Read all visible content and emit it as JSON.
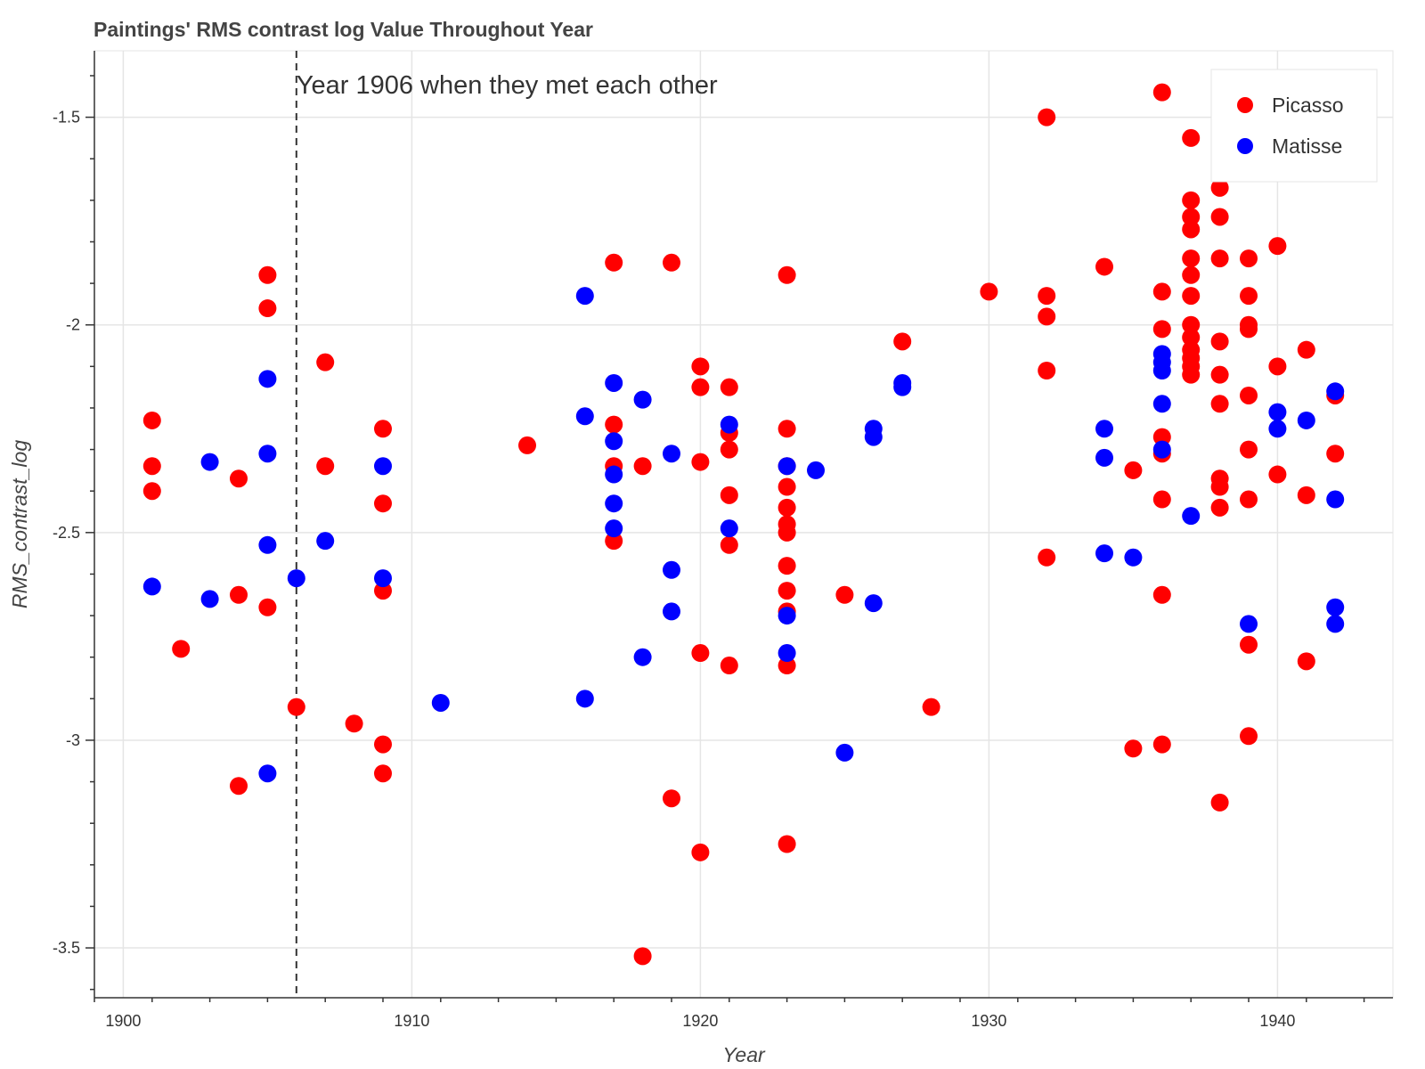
{
  "chart_data": {
    "type": "scatter",
    "title": "Paintings' RMS contrast log Value Throughout Year",
    "xlabel": "Year",
    "ylabel": "RMS_contrast_log",
    "xlim": [
      1899,
      1944
    ],
    "ylim": [
      -3.62,
      -1.34
    ],
    "x_ticks": [
      1900,
      1910,
      1920,
      1930,
      1940
    ],
    "y_ticks": [
      -1.5,
      -2,
      -2.5,
      -3,
      -3.5
    ],
    "grid": true,
    "legend_position": "top-right",
    "annotation": {
      "x": 1906,
      "style": "dashed",
      "text": "Year 1906 when they met each other"
    },
    "series": [
      {
        "name": "Picasso",
        "color": "#ff0000",
        "points": [
          [
            1901,
            -2.23
          ],
          [
            1901,
            -2.34
          ],
          [
            1901,
            -2.4
          ],
          [
            1902,
            -2.78
          ],
          [
            1904,
            -2.37
          ],
          [
            1904,
            -2.65
          ],
          [
            1904,
            -3.11
          ],
          [
            1905,
            -1.88
          ],
          [
            1905,
            -1.96
          ],
          [
            1905,
            -2.68
          ],
          [
            1906,
            -2.92
          ],
          [
            1907,
            -2.09
          ],
          [
            1907,
            -2.34
          ],
          [
            1908,
            -2.96
          ],
          [
            1909,
            -2.25
          ],
          [
            1909,
            -2.43
          ],
          [
            1909,
            -2.64
          ],
          [
            1909,
            -3.01
          ],
          [
            1909,
            -3.08
          ],
          [
            1914,
            -2.29
          ],
          [
            1917,
            -1.85
          ],
          [
            1917,
            -2.24
          ],
          [
            1917,
            -2.34
          ],
          [
            1917,
            -2.52
          ],
          [
            1918,
            -2.34
          ],
          [
            1918,
            -3.52
          ],
          [
            1919,
            -1.85
          ],
          [
            1919,
            -3.14
          ],
          [
            1920,
            -2.1
          ],
          [
            1920,
            -2.15
          ],
          [
            1920,
            -2.33
          ],
          [
            1920,
            -2.79
          ],
          [
            1920,
            -3.27
          ],
          [
            1921,
            -2.15
          ],
          [
            1921,
            -2.26
          ],
          [
            1921,
            -2.3
          ],
          [
            1921,
            -2.41
          ],
          [
            1921,
            -2.53
          ],
          [
            1921,
            -2.82
          ],
          [
            1923,
            -1.88
          ],
          [
            1923,
            -2.25
          ],
          [
            1923,
            -2.34
          ],
          [
            1923,
            -2.39
          ],
          [
            1923,
            -2.44
          ],
          [
            1923,
            -2.48
          ],
          [
            1923,
            -2.5
          ],
          [
            1923,
            -2.58
          ],
          [
            1923,
            -2.64
          ],
          [
            1923,
            -2.69
          ],
          [
            1923,
            -2.82
          ],
          [
            1923,
            -3.25
          ],
          [
            1925,
            -2.65
          ],
          [
            1927,
            -2.04
          ],
          [
            1928,
            -2.92
          ],
          [
            1930,
            -1.92
          ],
          [
            1932,
            -1.5
          ],
          [
            1932,
            -1.93
          ],
          [
            1932,
            -1.98
          ],
          [
            1932,
            -2.11
          ],
          [
            1932,
            -2.56
          ],
          [
            1934,
            -1.86
          ],
          [
            1935,
            -2.35
          ],
          [
            1935,
            -3.02
          ],
          [
            1936,
            -1.44
          ],
          [
            1936,
            -1.92
          ],
          [
            1936,
            -2.01
          ],
          [
            1936,
            -2.27
          ],
          [
            1936,
            -2.31
          ],
          [
            1936,
            -2.42
          ],
          [
            1936,
            -2.65
          ],
          [
            1936,
            -3.01
          ],
          [
            1937,
            -1.55
          ],
          [
            1937,
            -1.7
          ],
          [
            1937,
            -1.74
          ],
          [
            1937,
            -1.77
          ],
          [
            1937,
            -1.84
          ],
          [
            1937,
            -1.88
          ],
          [
            1937,
            -1.93
          ],
          [
            1937,
            -2.0
          ],
          [
            1937,
            -2.03
          ],
          [
            1937,
            -2.06
          ],
          [
            1937,
            -2.08
          ],
          [
            1937,
            -2.1
          ],
          [
            1937,
            -2.12
          ],
          [
            1938,
            -1.47
          ],
          [
            1938,
            -1.67
          ],
          [
            1938,
            -1.74
          ],
          [
            1938,
            -1.84
          ],
          [
            1938,
            -2.04
          ],
          [
            1938,
            -2.12
          ],
          [
            1938,
            -2.19
          ],
          [
            1938,
            -2.37
          ],
          [
            1938,
            -2.39
          ],
          [
            1938,
            -2.44
          ],
          [
            1938,
            -3.15
          ],
          [
            1939,
            -1.84
          ],
          [
            1939,
            -1.93
          ],
          [
            1939,
            -2.0
          ],
          [
            1939,
            -2.01
          ],
          [
            1939,
            -2.17
          ],
          [
            1939,
            -2.3
          ],
          [
            1939,
            -2.42
          ],
          [
            1939,
            -2.77
          ],
          [
            1939,
            -2.99
          ],
          [
            1940,
            -1.81
          ],
          [
            1940,
            -2.1
          ],
          [
            1940,
            -2.36
          ],
          [
            1941,
            -1.52
          ],
          [
            1941,
            -2.06
          ],
          [
            1941,
            -2.41
          ],
          [
            1941,
            -2.81
          ],
          [
            1942,
            -2.17
          ],
          [
            1942,
            -2.31
          ]
        ]
      },
      {
        "name": "Matisse",
        "color": "#0000ff",
        "points": [
          [
            1901,
            -2.63
          ],
          [
            1903,
            -2.33
          ],
          [
            1903,
            -2.66
          ],
          [
            1905,
            -2.13
          ],
          [
            1905,
            -2.31
          ],
          [
            1905,
            -2.53
          ],
          [
            1905,
            -3.08
          ],
          [
            1906,
            -2.61
          ],
          [
            1907,
            -2.52
          ],
          [
            1909,
            -2.34
          ],
          [
            1909,
            -2.61
          ],
          [
            1911,
            -2.91
          ],
          [
            1916,
            -1.93
          ],
          [
            1916,
            -2.22
          ],
          [
            1916,
            -2.9
          ],
          [
            1917,
            -2.14
          ],
          [
            1917,
            -2.28
          ],
          [
            1917,
            -2.36
          ],
          [
            1917,
            -2.43
          ],
          [
            1917,
            -2.49
          ],
          [
            1918,
            -2.18
          ],
          [
            1918,
            -2.8
          ],
          [
            1919,
            -2.31
          ],
          [
            1919,
            -2.59
          ],
          [
            1919,
            -2.69
          ],
          [
            1921,
            -2.24
          ],
          [
            1921,
            -2.49
          ],
          [
            1923,
            -2.34
          ],
          [
            1923,
            -2.7
          ],
          [
            1923,
            -2.79
          ],
          [
            1924,
            -2.35
          ],
          [
            1925,
            -3.03
          ],
          [
            1926,
            -2.25
          ],
          [
            1926,
            -2.27
          ],
          [
            1926,
            -2.67
          ],
          [
            1927,
            -2.14
          ],
          [
            1927,
            -2.15
          ],
          [
            1934,
            -2.25
          ],
          [
            1934,
            -2.32
          ],
          [
            1934,
            -2.55
          ],
          [
            1935,
            -2.56
          ],
          [
            1936,
            -2.07
          ],
          [
            1936,
            -2.09
          ],
          [
            1936,
            -2.11
          ],
          [
            1936,
            -2.19
          ],
          [
            1936,
            -2.3
          ],
          [
            1937,
            -2.46
          ],
          [
            1939,
            -2.72
          ],
          [
            1940,
            -2.21
          ],
          [
            1940,
            -2.25
          ],
          [
            1941,
            -2.23
          ],
          [
            1942,
            -2.16
          ],
          [
            1942,
            -2.42
          ],
          [
            1942,
            -2.68
          ],
          [
            1942,
            -2.72
          ]
        ]
      }
    ]
  }
}
